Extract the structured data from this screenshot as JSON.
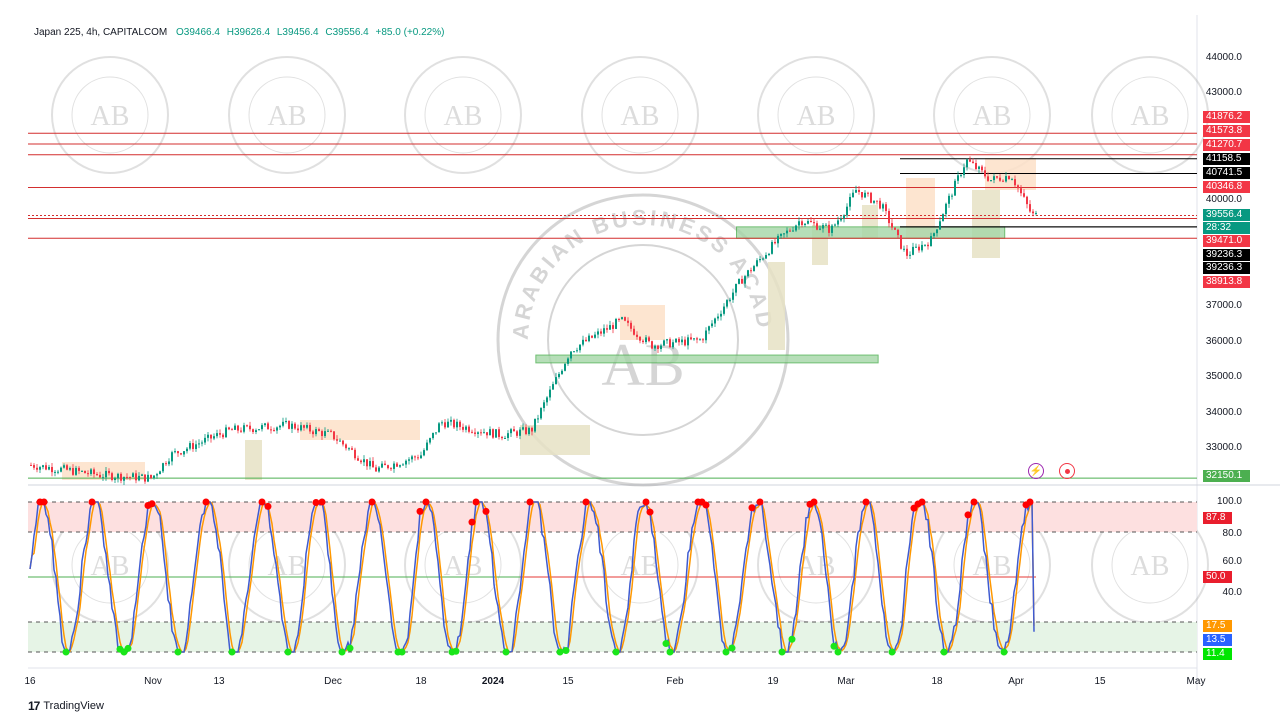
{
  "header": {
    "symbol": "Japan 225, 4h, CAPITALCOM",
    "open": "O39466.4",
    "high": "H39626.4",
    "low": "L39456.4",
    "close": "C39556.4",
    "change": "+85.0 (+0.22%)"
  },
  "watermark": {
    "text": "ARABIAN BUSINESS ACADEMY",
    "monogram": "AB"
  },
  "price_axis": [
    "44000.0",
    "43000.0",
    "40000.0",
    "37000.0",
    "36000.0",
    "35000.0",
    "34000.0",
    "33000.0"
  ],
  "price_axis_values": [
    44000,
    43000,
    40000,
    37000,
    36000,
    35000,
    34000,
    33000
  ],
  "price_tags": [
    {
      "label": "41876.2",
      "value": 41876.2,
      "color": "#f23645"
    },
    {
      "label": "41573.8",
      "value": 41573.8,
      "color": "#f23645"
    },
    {
      "label": "41270.7",
      "value": 41270.7,
      "color": "#f23645"
    },
    {
      "label": "41158.5",
      "value": 41158.5,
      "color": "#000000"
    },
    {
      "label": "40741.5",
      "value": 40741.5,
      "color": "#000000"
    },
    {
      "label": "40346.8",
      "value": 40346.8,
      "color": "#f23645"
    },
    {
      "label": "39556.4",
      "value": 39556.4,
      "color": "#089981"
    },
    {
      "label": "28:32",
      "value": 39556.4,
      "color": "#089981"
    },
    {
      "label": "39471.0",
      "value": 39471.0,
      "color": "#f23645"
    },
    {
      "label": "39236.3",
      "value": 39236.3,
      "color": "#000000"
    },
    {
      "label": "39236.3",
      "value": 39236.3,
      "color": "#000000"
    },
    {
      "label": "38913.8",
      "value": 38913.8,
      "color": "#f23645"
    },
    {
      "label": "32150.1",
      "value": 32150.1,
      "color": "#4caf50"
    }
  ],
  "osc_axis": [
    "100.0",
    "80.0",
    "60.0",
    "40.0"
  ],
  "osc_axis_values": [
    100,
    80,
    60,
    40
  ],
  "osc_tags": [
    {
      "label": "87.8",
      "value": 87.8,
      "color": "#e91e2d"
    },
    {
      "label": "50.0",
      "value": 50.0,
      "color": "#e91e2d"
    },
    {
      "label": "17.5",
      "value": 17.5,
      "color": "#ff9800"
    },
    {
      "label": "13.5",
      "value": 13.5,
      "color": "#2962ff"
    },
    {
      "label": "11.4",
      "value": 11.4,
      "color": "#00e600"
    }
  ],
  "time_axis": [
    {
      "label": "16",
      "day": 0
    },
    {
      "label": "Nov",
      "day": 16
    },
    {
      "label": "13",
      "day": 28
    },
    {
      "label": "Dec",
      "day": 46
    },
    {
      "label": "18",
      "day": 63
    },
    {
      "label": "2024",
      "day": 77,
      "bold": true
    },
    {
      "label": "15",
      "day": 91
    },
    {
      "label": "Feb",
      "day": 108
    },
    {
      "label": "19",
      "day": 126
    },
    {
      "label": "Mar",
      "day": 137
    },
    {
      "label": "18",
      "day": 154
    },
    {
      "label": "Apr",
      "day": 168
    },
    {
      "label": "15",
      "day": 182
    },
    {
      "label": "May",
      "day": 198
    }
  ],
  "footer": {
    "brand": "TradingView"
  },
  "icons": {
    "alert": "lightning-icon",
    "target": "target-icon"
  },
  "colors": {
    "up": "#089981",
    "down": "#f23645",
    "resistance": "#d32f2f",
    "support_zone": "#4caf50",
    "osc_fast": "#3f5bd1",
    "osc_slow": "#ff9800"
  },
  "chart_data": {
    "type": "line",
    "title": "Japan 225, 4h, CAPITALCOM",
    "price_path": [
      [
        0,
        32520
      ],
      [
        9,
        32240
      ],
      [
        15.6,
        32150
      ],
      [
        19,
        32800
      ],
      [
        29.7,
        33500
      ],
      [
        38.8,
        33650
      ],
      [
        45.5,
        33370
      ],
      [
        54,
        32380
      ],
      [
        62.8,
        32800
      ],
      [
        66.7,
        33730
      ],
      [
        78.3,
        33370
      ],
      [
        84,
        33500
      ],
      [
        86.7,
        34350
      ],
      [
        91.3,
        35760
      ],
      [
        99.3,
        36600
      ],
      [
        104,
        35900
      ],
      [
        112.6,
        36050
      ],
      [
        120,
        37740
      ],
      [
        130,
        39430
      ],
      [
        134.6,
        39150
      ],
      [
        138.7,
        40280
      ],
      [
        143.4,
        39850
      ],
      [
        148,
        38440
      ],
      [
        152.7,
        38870
      ],
      [
        159,
        41120
      ],
      [
        163.4,
        40560
      ],
      [
        167,
        40700
      ],
      [
        170.5,
        39570
      ],
      [
        171.5,
        39556.4
      ]
    ],
    "horizontal_levels": [
      41876.2,
      41573.8,
      41270.7,
      41158.5,
      40741.5,
      40346.8,
      39471.0,
      39236.3,
      38913.8,
      32150.1
    ],
    "support_zones": [
      {
        "from_day": 119.3,
        "to_day": 166,
        "low": 38913.8,
        "high": 39236.3
      },
      {
        "from_day": 85,
        "to_day": 143,
        "low": 35400,
        "high": 35620
      }
    ],
    "ylim": [
      32000,
      44300
    ],
    "oscillator": {
      "levels": [
        100,
        80,
        50,
        20,
        0
      ],
      "last_fast": 13.5,
      "last_slow": 17.5,
      "ylim": [
        0,
        100
      ]
    }
  }
}
